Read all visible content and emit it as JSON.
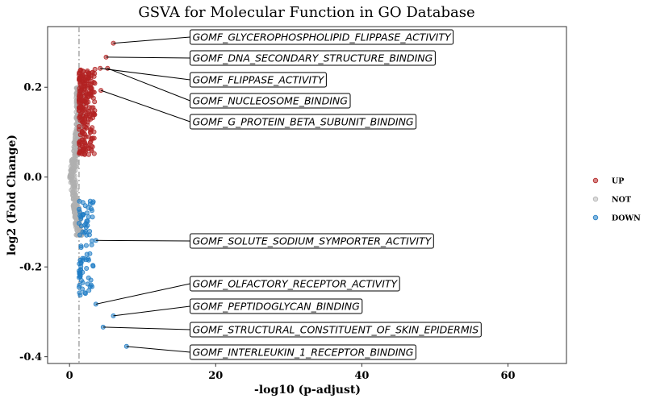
{
  "chart_data": {
    "type": "scatter",
    "title": "GSVA for Molecular Function in GO Database",
    "xlabel": "-log10 (p-adjust)",
    "ylabel": "log2 (Fold Change)",
    "xlim": [
      -3,
      68
    ],
    "ylim": [
      -0.415,
      0.335
    ],
    "x_ticks": [
      0,
      20,
      40,
      60
    ],
    "y_ticks": [
      -0.4,
      -0.2,
      0.0,
      0.2
    ],
    "y_tick_labels": [
      "-0.4",
      "-0.2",
      "0.0",
      "0.2"
    ],
    "threshold_x": 1.3,
    "grid": false,
    "legend_position": "right",
    "series": [
      {
        "name": "UP",
        "color": "#B22222"
      },
      {
        "name": "NOT",
        "color": "#B0B0B0"
      },
      {
        "name": "DOWN",
        "color": "#1E7BC4"
      }
    ],
    "labeled_points": [
      {
        "label": "GOMF_GLYCEROPHOSPHOLIPID_FLIPPASE_ACTIVITY",
        "x": 6.0,
        "y": 0.298,
        "group": "UP"
      },
      {
        "label": "GOMF_DNA_SECONDARY_STRUCTURE_BINDING",
        "x": 5.0,
        "y": 0.267,
        "group": "UP"
      },
      {
        "label": "GOMF_FLIPPASE_ACTIVITY",
        "x": 4.2,
        "y": 0.242,
        "group": "UP"
      },
      {
        "label": "GOMF_NUCLEOSOME_BINDING",
        "x": 5.2,
        "y": 0.242,
        "group": "UP"
      },
      {
        "label": "GOMF_G_PROTEIN_BETA_SUBUNIT_BINDING",
        "x": 4.3,
        "y": 0.193,
        "group": "UP"
      },
      {
        "label": "GOMF_SOLUTE_SODIUM_SYMPORTER_ACTIVITY",
        "x": 3.6,
        "y": -0.141,
        "group": "DOWN"
      },
      {
        "label": "GOMF_OLFACTORY_RECEPTOR_ACTIVITY",
        "x": 3.6,
        "y": -0.283,
        "group": "DOWN"
      },
      {
        "label": "GOMF_PEPTIDOGLYCAN_BINDING",
        "x": 6.0,
        "y": -0.309,
        "group": "DOWN"
      },
      {
        "label": "GOMF_STRUCTURAL_CONSTITUENT_OF_SKIN_EPIDERMIS",
        "x": 4.6,
        "y": -0.334,
        "group": "DOWN"
      },
      {
        "label": "GOMF_INTERLEUKIN_1_RECEPTOR_BINDING",
        "x": 7.8,
        "y": -0.377,
        "group": "DOWN"
      }
    ],
    "point_clouds": [
      {
        "group": "NOT",
        "count": 420,
        "x_min": -0.2,
        "x_max": 1.6,
        "y_min": -0.13,
        "y_max": 0.2
      },
      {
        "group": "UP",
        "count": 240,
        "x_min": 1.3,
        "x_max": 3.5,
        "y_min": 0.05,
        "y_max": 0.24
      },
      {
        "group": "DOWN",
        "count": 85,
        "x_min": 1.3,
        "x_max": 3.3,
        "y_min": -0.27,
        "y_max": -0.05
      }
    ]
  }
}
